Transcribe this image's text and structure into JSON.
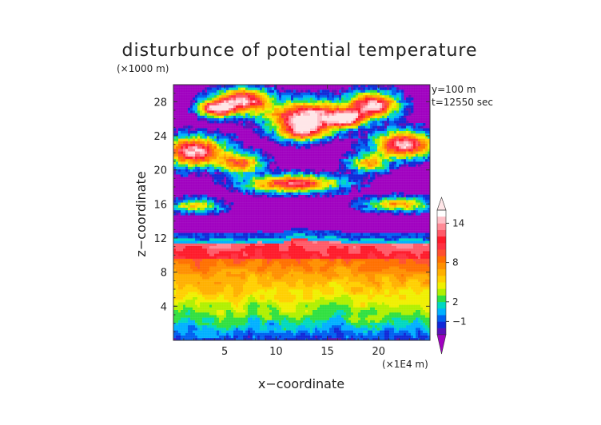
{
  "chart_data": {
    "type": "heatmap",
    "title": "disturbunce of potential temperature",
    "z_unit": "(×1000 m)",
    "x_unit": "(×1E4 m)",
    "xlabel": "x−coordinate",
    "ylabel": "z−coordinate",
    "info": [
      "y=100 m",
      "t=12550 sec"
    ],
    "xlim": [
      0,
      25
    ],
    "ylim": [
      0,
      30
    ],
    "x_ticks": [
      5,
      10,
      15,
      20
    ],
    "y_ticks": [
      4,
      8,
      12,
      16,
      20,
      24,
      28
    ],
    "colorbar_labels": [
      14,
      8,
      2,
      -1
    ],
    "colorbar_levels": [
      -4,
      -3,
      -2,
      -1,
      0,
      1,
      2,
      3,
      4,
      5,
      6,
      7,
      8,
      9,
      10,
      11,
      12,
      13,
      14,
      15
    ],
    "colors": [
      "#a000c0",
      "#5a10b8",
      "#1028d8",
      "#0060f0",
      "#00b0ff",
      "#00d8c0",
      "#30e040",
      "#b0f000",
      "#f0f000",
      "#ffd000",
      "#ffb000",
      "#ff9000",
      "#ff7000",
      "#ff5030",
      "#ff3040",
      "#ff1a2a",
      "#ff5a68",
      "#ff8a96",
      "#ffc0c8",
      "#ffe6e8"
    ],
    "field_summary": {
      "background": -3,
      "boundary_layer_z": [
        0,
        2,
        -1
      ],
      "main_layer_z": [
        2,
        12,
        9
      ],
      "upper_patches_z": [
        15,
        29,
        14
      ]
    }
  }
}
